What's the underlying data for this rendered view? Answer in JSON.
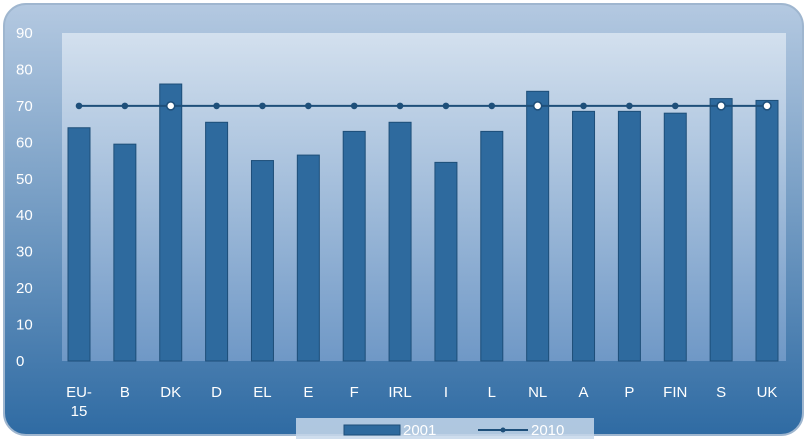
{
  "chart_data": {
    "type": "bar",
    "categories": [
      "EU-15",
      "B",
      "DK",
      "D",
      "EL",
      "E",
      "F",
      "IRL",
      "I",
      "L",
      "NL",
      "A",
      "P",
      "FIN",
      "S",
      "UK"
    ],
    "series": [
      {
        "name": "2001",
        "kind": "bar",
        "values": [
          64,
          59.5,
          76,
          65.5,
          55,
          56.5,
          63,
          65.5,
          54.5,
          63,
          74,
          68.5,
          68.5,
          68,
          72,
          71.5
        ]
      },
      {
        "name": "2010",
        "kind": "line",
        "values": [
          70,
          70,
          70,
          70,
          70,
          70,
          70,
          70,
          70,
          70,
          70,
          70,
          70,
          70,
          70,
          70
        ]
      }
    ],
    "ylim": [
      0,
      90
    ],
    "yticks": [
      0,
      10,
      20,
      30,
      40,
      50,
      60,
      70,
      80,
      90
    ],
    "grid": false,
    "legend_position": "bottom",
    "colors": {
      "bar_fill": "#2e6a9e",
      "bar_stroke": "#1d4e78",
      "line": "#1e4f7a",
      "marker_fill": "#ffffff",
      "frame_top": "#b4c9e1",
      "frame_bottom": "#2f6ba3",
      "plot_top": "#d3e0ee",
      "plot_bottom": "#6f98c6",
      "axis_text": "#ffffff"
    }
  }
}
